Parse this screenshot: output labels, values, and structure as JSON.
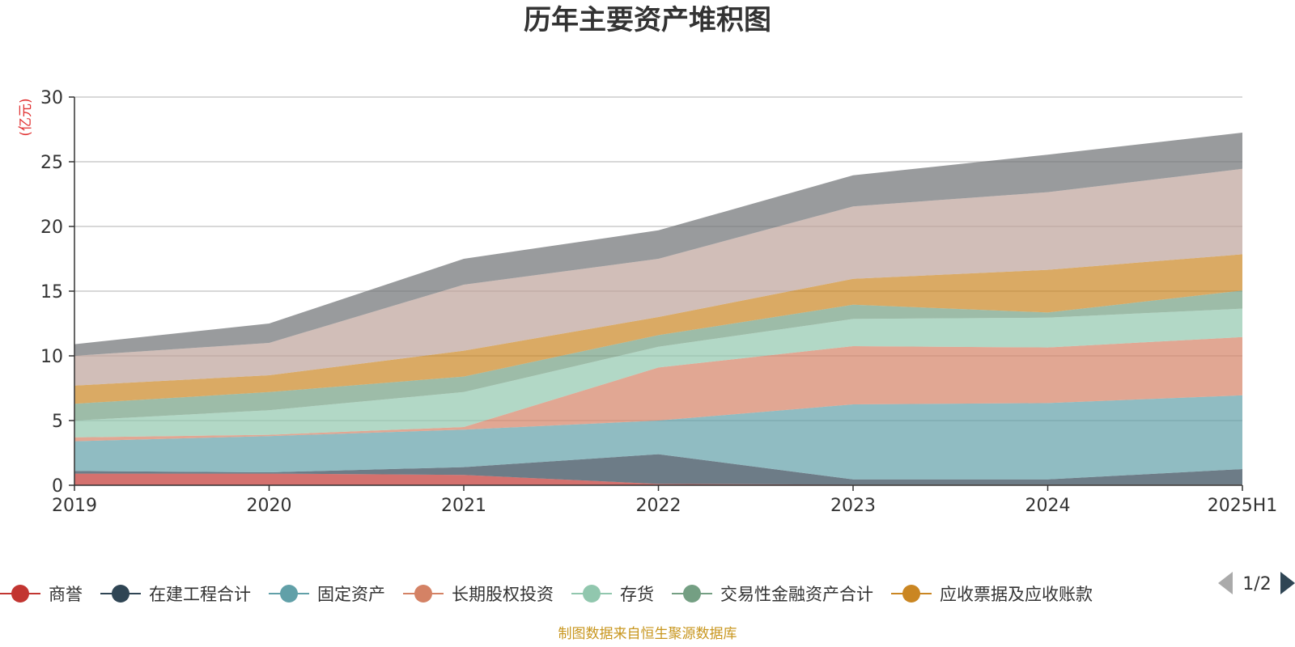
{
  "chart_data": {
    "type": "area",
    "stacked": true,
    "title": "历年主要资产堆积图",
    "ylabel": "(亿元)",
    "xlabel": "",
    "categories": [
      "2019",
      "2020",
      "2021",
      "2022",
      "2023",
      "2024",
      "2025H1"
    ],
    "ylim": [
      0,
      30
    ],
    "yticks": [
      0,
      5,
      10,
      15,
      20,
      25,
      30
    ],
    "grid": true,
    "legend_position": "bottom",
    "series": [
      {
        "name": "商誉",
        "color": "#c23531",
        "values": [
          0.9,
          0.9,
          0.8,
          0.1,
          0.05,
          0.05,
          0.05
        ]
      },
      {
        "name": "在建工程合计",
        "color": "#2f4554",
        "values": [
          0.2,
          0.1,
          0.6,
          2.3,
          0.4,
          0.4,
          1.2
        ]
      },
      {
        "name": "固定资产",
        "color": "#61a0a8",
        "values": [
          2.3,
          2.8,
          2.9,
          2.6,
          5.8,
          5.9,
          5.7
        ]
      },
      {
        "name": "长期股权投资",
        "color": "#d48265",
        "values": [
          0.3,
          0.1,
          0.2,
          4.1,
          4.5,
          4.3,
          4.5
        ]
      },
      {
        "name": "存货",
        "color": "#91c7ae",
        "values": [
          1.3,
          1.9,
          2.7,
          1.6,
          2.1,
          2.3,
          2.2
        ]
      },
      {
        "name": "交易性金融资产合计",
        "color": "#749f83",
        "values": [
          1.3,
          1.4,
          1.2,
          0.9,
          1.1,
          0.4,
          1.4
        ]
      },
      {
        "name": "应收票据及应收账款",
        "color": "#ca8622",
        "values": [
          1.4,
          1.3,
          2.0,
          1.4,
          2.0,
          3.3,
          2.8
        ]
      },
      {
        "name": "",
        "color": "#bda29a",
        "values": [
          2.3,
          2.5,
          5.1,
          4.5,
          5.6,
          6.0,
          6.6
        ]
      },
      {
        "name": "",
        "color": "#6e7074",
        "values": [
          0.9,
          1.5,
          2.0,
          2.2,
          2.4,
          2.9,
          2.8
        ]
      }
    ]
  },
  "legend": {
    "page": "1/2"
  },
  "footer": {
    "source": "制图数据来自恒生聚源数据库"
  }
}
